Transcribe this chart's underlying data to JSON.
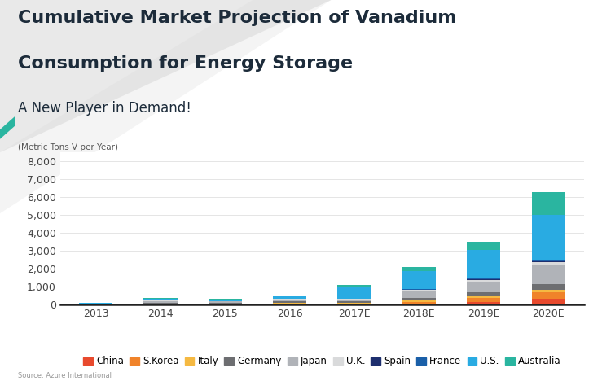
{
  "categories": [
    "2013",
    "2014",
    "2015",
    "2016",
    "2017E",
    "2018E",
    "2019E",
    "2020E"
  ],
  "series": {
    "China": [
      0,
      0,
      0,
      0,
      0,
      0,
      150,
      350
    ],
    "S.Korea": [
      0,
      50,
      30,
      50,
      50,
      150,
      250,
      350
    ],
    "Italy": [
      0,
      30,
      30,
      50,
      50,
      100,
      100,
      150
    ],
    "Germany": [
      20,
      50,
      50,
      80,
      80,
      150,
      200,
      300
    ],
    "Japan": [
      20,
      80,
      80,
      120,
      120,
      350,
      600,
      1100
    ],
    "U.K.": [
      10,
      30,
      30,
      40,
      40,
      80,
      100,
      130
    ],
    "Spain": [
      0,
      0,
      0,
      0,
      0,
      0,
      20,
      40
    ],
    "France": [
      0,
      0,
      0,
      0,
      0,
      30,
      50,
      80
    ],
    "U.S.": [
      50,
      80,
      80,
      150,
      650,
      1000,
      1600,
      2500
    ],
    "Australia": [
      20,
      50,
      50,
      50,
      100,
      250,
      450,
      1300
    ]
  },
  "colors": {
    "China": "#e84a2e",
    "S.Korea": "#f0832a",
    "Italy": "#f5b942",
    "Germany": "#6d6e71",
    "Japan": "#b0b3b8",
    "U.K.": "#d9dadb",
    "Spain": "#1e2f6e",
    "France": "#1a5fa8",
    "U.S.": "#29abe2",
    "Australia": "#2ab5a0"
  },
  "title_line1": "Cumulative Market Projection of Vanadium",
  "title_line2": "Consumption for Energy Storage",
  "subtitle": "A New Player in Demand!",
  "ylabel": "(Metric Tons V per Year)",
  "ylim": [
    0,
    8500
  ],
  "yticks": [
    0,
    1000,
    2000,
    3000,
    4000,
    5000,
    6000,
    7000,
    8000
  ],
  "source": "Source: Azure International",
  "background_color": "#ffffff",
  "title_fontsize": 16,
  "subtitle_fontsize": 12,
  "axis_fontsize": 9,
  "legend_fontsize": 8.5
}
